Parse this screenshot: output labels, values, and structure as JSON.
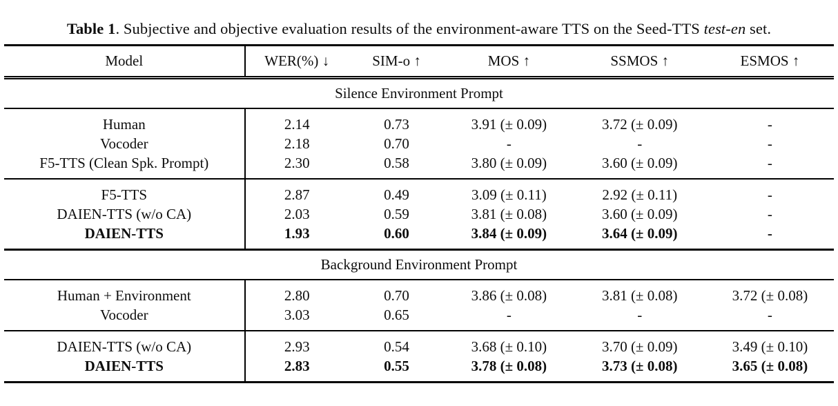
{
  "caption": {
    "label": "Table 1",
    "body": ". Subjective and objective evaluation results of the environment-aware TTS on the Seed-TTS ",
    "italic": "test-en",
    "tail": " set."
  },
  "table": {
    "headers": [
      "Model",
      "WER(%) ↓",
      "SIM-o ↑",
      "MOS ↑",
      "SSMOS ↑",
      "ESMOS ↑"
    ],
    "sections": [
      {
        "title": "Silence Environment Prompt",
        "groups": [
          {
            "rows": [
              {
                "model": "Human",
                "bold": false,
                "values": [
                  "2.14",
                  "0.73",
                  "3.91 (± 0.09)",
                  "3.72 (± 0.09)",
                  "-"
                ]
              },
              {
                "model": "Vocoder",
                "bold": false,
                "values": [
                  "2.18",
                  "0.70",
                  "-",
                  "-",
                  "-"
                ]
              },
              {
                "model": "F5-TTS (Clean Spk. Prompt)",
                "bold": false,
                "values": [
                  "2.30",
                  "0.58",
                  "3.80 (± 0.09)",
                  "3.60 (± 0.09)",
                  "-"
                ]
              }
            ]
          },
          {
            "rows": [
              {
                "model": "F5-TTS",
                "bold": false,
                "values": [
                  "2.87",
                  "0.49",
                  "3.09 (± 0.11)",
                  "2.92 (± 0.11)",
                  "-"
                ]
              },
              {
                "model": "DAIEN-TTS (w/o CA)",
                "bold": false,
                "values": [
                  "2.03",
                  "0.59",
                  "3.81 (± 0.08)",
                  "3.60 (± 0.09)",
                  "-"
                ]
              },
              {
                "model": "DAIEN-TTS",
                "bold": true,
                "values": [
                  "1.93",
                  "0.60",
                  "3.84 (± 0.09)",
                  "3.64 (± 0.09)",
                  "-"
                ]
              }
            ]
          }
        ]
      },
      {
        "title": "Background Environment Prompt",
        "groups": [
          {
            "rows": [
              {
                "model": "Human + Environment",
                "bold": false,
                "values": [
                  "2.80",
                  "0.70",
                  "3.86 (± 0.08)",
                  "3.81 (± 0.08)",
                  "3.72 (± 0.08)"
                ]
              },
              {
                "model": "Vocoder",
                "bold": false,
                "values": [
                  "3.03",
                  "0.65",
                  "-",
                  "-",
                  "-"
                ]
              }
            ]
          },
          {
            "rows": [
              {
                "model": "DAIEN-TTS (w/o CA)",
                "bold": false,
                "values": [
                  "2.93",
                  "0.54",
                  "3.68 (± 0.10)",
                  "3.70 (± 0.09)",
                  "3.49 (± 0.10)"
                ]
              },
              {
                "model": "DAIEN-TTS",
                "bold": true,
                "values": [
                  "2.83",
                  "0.55",
                  "3.78 (± 0.08)",
                  "3.73 (± 0.08)",
                  "3.65 (± 0.08)"
                ]
              }
            ]
          }
        ]
      }
    ]
  }
}
